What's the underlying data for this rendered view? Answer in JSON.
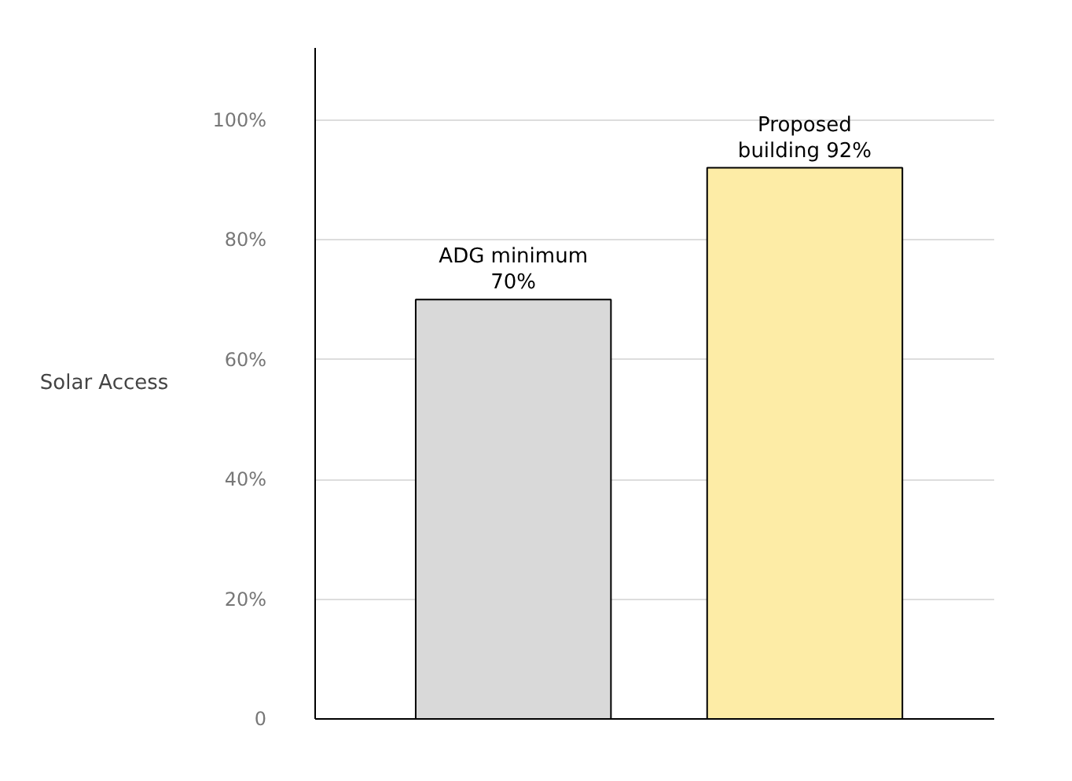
{
  "chart_data": {
    "type": "bar",
    "ylabel": "Solar Access",
    "categories": [
      null,
      null
    ],
    "values": [
      70,
      92
    ],
    "colors": [
      "#d9d9d9",
      "#fdeca6"
    ],
    "value_labels": [
      "ADG minimum\n70%",
      "Proposed\nbuilding 92%"
    ],
    "ylim": [
      0,
      112
    ],
    "yticks": [
      {
        "value": 0,
        "label": "0"
      },
      {
        "value": 20,
        "label": "20%"
      },
      {
        "value": 40,
        "label": "40%"
      },
      {
        "value": 60,
        "label": "60%"
      },
      {
        "value": 80,
        "label": "80%"
      },
      {
        "value": 100,
        "label": "100%"
      }
    ],
    "grid": "y"
  }
}
